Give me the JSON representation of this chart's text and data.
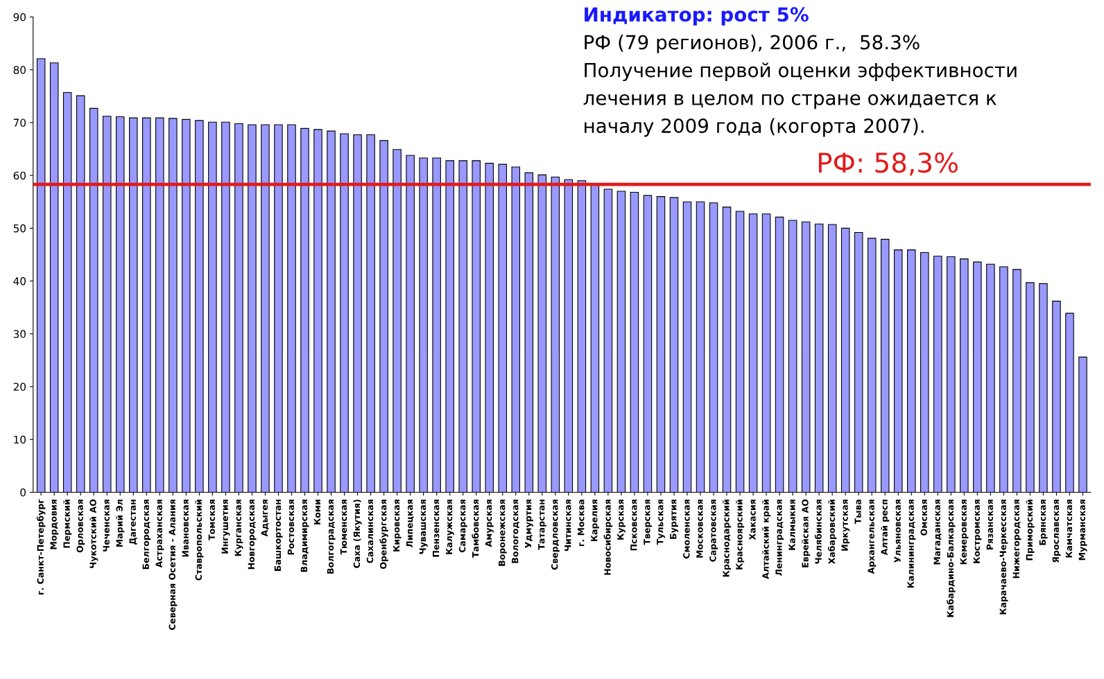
{
  "chart_data": {
    "type": "bar",
    "categories": [
      "г. Санкт-Петербург",
      "Мордовия",
      "Пермский",
      "Орловская",
      "Чукотский АО",
      "Чеченская",
      "Марий Эл",
      "Дагестан",
      "Белгородская",
      "Астраханская",
      "Северная Осетия - Алания",
      "Ивановская",
      "Ставропольский",
      "Томская",
      "Ингушетия",
      "Курганская",
      "Новгородская",
      "Адыгея",
      "Башкортостан",
      "Ростовская",
      "Владимирская",
      "Коми",
      "Волгоградская",
      "Тюменская",
      "Саха (Якутия)",
      "Сахалинская",
      "Оренбургская",
      "Кировская",
      "Липецкая",
      "Чувашская",
      "Пензенская",
      "Калужская",
      "Самарская",
      "Тамбовская",
      "Амурская",
      "Воронежская",
      "Вологодская",
      "Удмуртия",
      "Татарстан",
      "Свердловская",
      "Читинская",
      "г. Москва",
      "Карелия",
      "Новосибирская",
      "Курская",
      "Псковская",
      "Тверская",
      "Тульская",
      "Бурятия",
      "Смоленская",
      "Московская",
      "Саратовская",
      "Краснодарский",
      "Красноярский",
      "Хакасия",
      "Алтайский край",
      "Ленинградская",
      "Калмыкия",
      "Еврейская АО",
      "Челябинская",
      "Хабаровский",
      "Иркутская",
      "Тыва",
      "Архангельская",
      "Алтай респ",
      "Ульяновская",
      "Калининградская",
      "Омская",
      "Магаданская",
      "Кабардино-Балкарская",
      "Кемеровская",
      "Костромская",
      "Рязанская",
      "Карачаево-Черкесская",
      "Нижегородская",
      "Приморский",
      "Брянская",
      "Ярославская",
      "Камчатская",
      "Мурманская"
    ],
    "values": [
      82.1,
      81.3,
      75.7,
      75.1,
      72.7,
      71.2,
      71.1,
      70.9,
      70.9,
      70.9,
      70.8,
      70.6,
      70.4,
      70.1,
      70.1,
      69.8,
      69.6,
      69.6,
      69.6,
      69.6,
      68.9,
      68.7,
      68.4,
      67.9,
      67.7,
      67.7,
      66.6,
      64.9,
      63.8,
      63.3,
      63.3,
      62.8,
      62.8,
      62.8,
      62.3,
      62.1,
      61.6,
      60.5,
      60.1,
      59.7,
      59.2,
      59.0,
      58.3,
      57.4,
      57.0,
      56.8,
      56.2,
      56.0,
      55.8,
      55.0,
      55.0,
      54.8,
      54.0,
      53.2,
      52.7,
      52.7,
      52.1,
      51.5,
      51.2,
      50.8,
      50.7,
      50.0,
      49.2,
      48.1,
      47.9,
      45.9,
      45.9,
      45.4,
      44.7,
      44.6,
      44.2,
      43.6,
      43.2,
      42.7,
      42.2,
      39.7,
      39.5,
      36.2,
      33.9,
      25.6
    ],
    "color": "#9999ff",
    "ylim": [
      0,
      90
    ],
    "yticks": [
      0,
      10,
      20,
      30,
      40,
      50,
      60,
      70,
      80,
      90
    ],
    "grid": false,
    "ref_lines": [
      {
        "axis": "y",
        "value": 58.3,
        "label": "РФ: 58,3%",
        "color": "#e31a1c"
      }
    ],
    "annotations": [
      "Индикатор: рост 5%",
      "РФ (79 регионов), 2006 г.,  58.3%",
      "Получение первой оценки эффективности",
      "лечения в целом по стране ожидается к",
      "началу 2009 года (когорта 2007)."
    ]
  }
}
